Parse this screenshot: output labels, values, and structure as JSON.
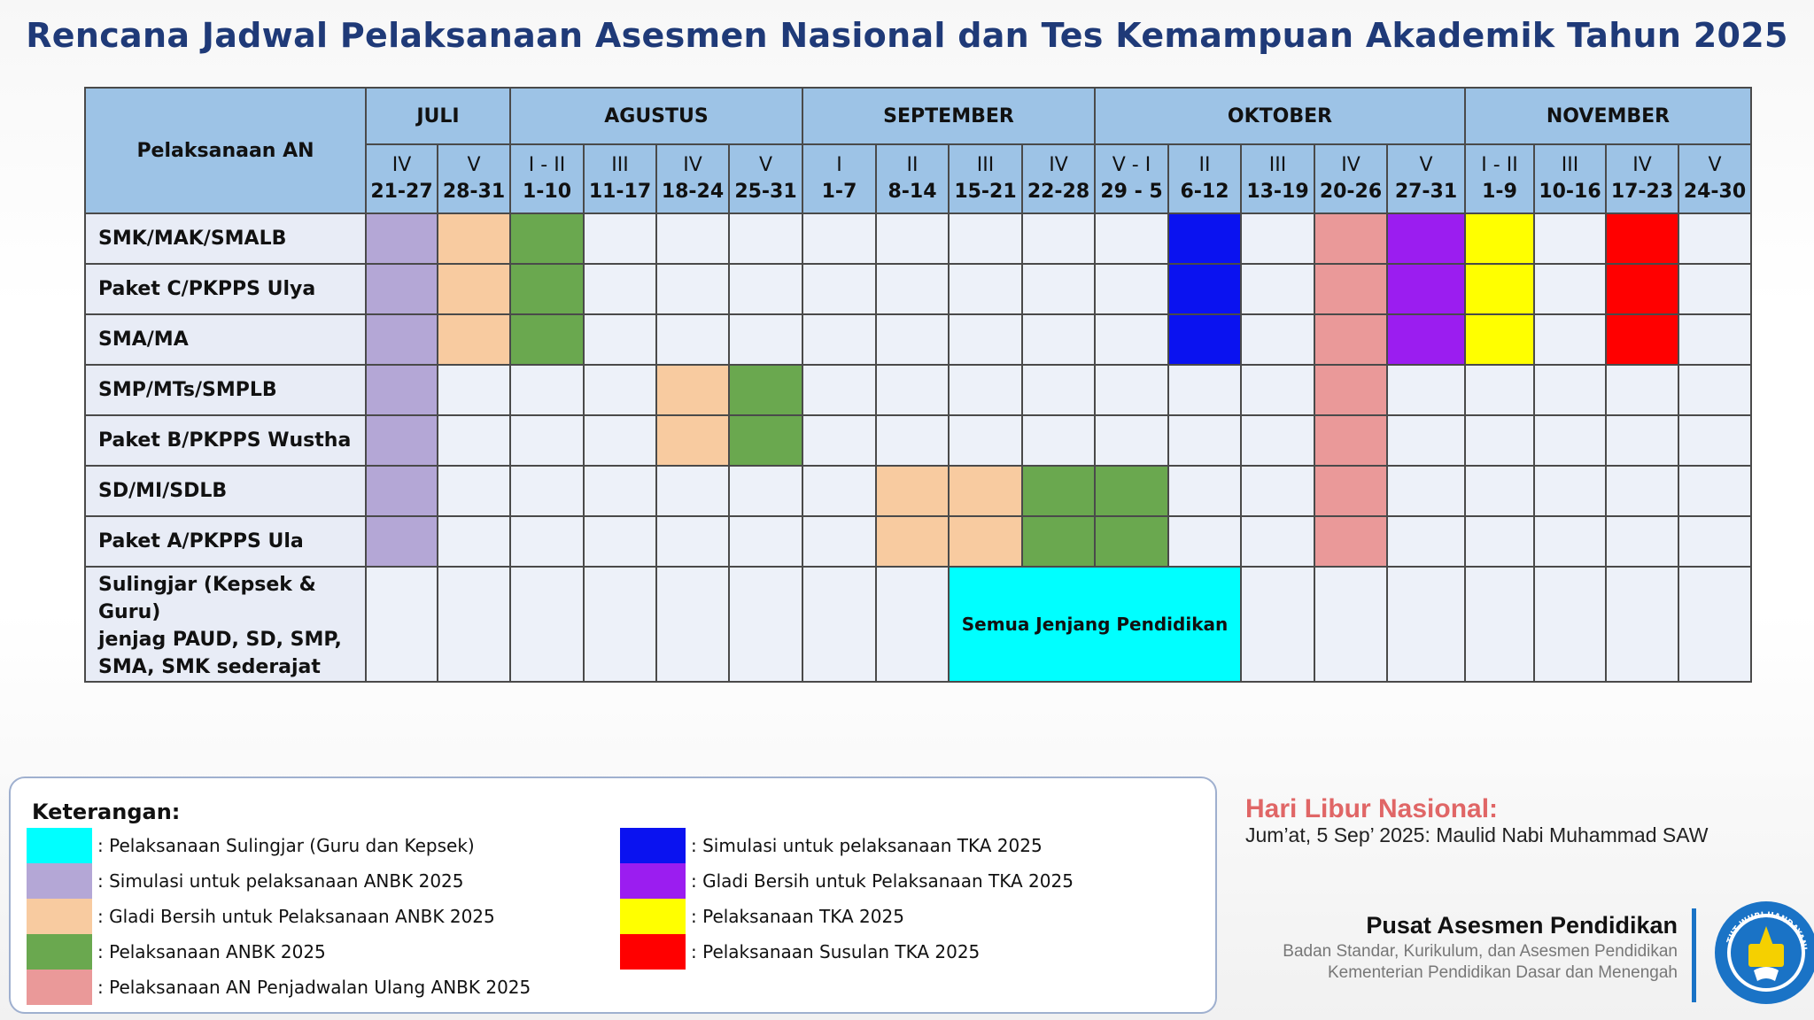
{
  "title": "Rencana Jadwal Pelaksanaan Asesmen Nasional dan Tes Kemampuan Akademik Tahun 2025",
  "table": {
    "corner": "Pelaksanaan AN",
    "months": [
      "JULI",
      "AGUSTUS",
      "SEPTEMBER",
      "OKTOBER",
      "NOVEMBER"
    ],
    "weeks": [
      {
        "rom": "IV",
        "range": "21-27"
      },
      {
        "rom": "V",
        "range": "28-31"
      },
      {
        "rom": "I - II",
        "range": "1-10"
      },
      {
        "rom": "III",
        "range": "11-17"
      },
      {
        "rom": "IV",
        "range": "18-24"
      },
      {
        "rom": "V",
        "range": "25-31"
      },
      {
        "rom": "I",
        "range": "1-7"
      },
      {
        "rom": "II",
        "range": "8-14"
      },
      {
        "rom": "III",
        "range": "15-21"
      },
      {
        "rom": "IV",
        "range": "22-28"
      },
      {
        "rom": "V - I",
        "range": "29 - 5"
      },
      {
        "rom": "II",
        "range": "6-12"
      },
      {
        "rom": "III",
        "range": "13-19"
      },
      {
        "rom": "IV",
        "range": "20-26"
      },
      {
        "rom": "V",
        "range": "27-31"
      },
      {
        "rom": "I - II",
        "range": "1-9"
      },
      {
        "rom": "III",
        "range": "10-16"
      },
      {
        "rom": "IV",
        "range": "17-23"
      },
      {
        "rom": "V",
        "range": "24-30"
      }
    ],
    "rows": [
      "SMK/MAK/SMALB",
      "Paket C/PKPPS Ulya",
      "SMA/MA",
      "SMP/MTs/SMPLB",
      "Paket B/PKPPS Wustha",
      "SD/MI/SDLB",
      "Paket A/PKPPS Ula"
    ],
    "sulingjar": {
      "line1": "Sulingjar (Kepsek & Guru)",
      "line2": "jenjag PAUD, SD, SMP,",
      "line3": "SMA, SMK  sederajat",
      "span_text": "Semua Jenjang Pendidikan"
    }
  },
  "legend": {
    "title": "Keterangan:",
    "items": [
      {
        "color": "#00ffff",
        "text": ": Pelaksanaan Sulingjar (Guru dan Kepsek)"
      },
      {
        "color": "#b4a7d6",
        "text": ": Simulasi untuk pelaksanaan ANBK 2025"
      },
      {
        "color": "#f8cba0",
        "text": ": Gladi Bersih untuk Pelaksanaan ANBK 2025"
      },
      {
        "color": "#6aa84f",
        "text": ": Pelaksanaan ANBK 2025"
      },
      {
        "color": "#ea9999",
        "text": ": Pelaksanaan AN Penjadwalan Ulang ANBK 2025"
      },
      {
        "color": "#0a12f0",
        "text": ": Simulasi untuk pelaksanaan TKA 2025"
      },
      {
        "color": "#9b1df0",
        "text": ": Gladi Bersih untuk Pelaksanaan TKA 2025"
      },
      {
        "color": "#ffff00",
        "text": ": Pelaksanaan TKA 2025"
      },
      {
        "color": "#ff0000",
        "text": ": Pelaksanaan Susulan TKA 2025"
      }
    ]
  },
  "holiday": {
    "title": "Hari Libur Nasional:",
    "text": "Jum’at, 5 Sep’ 2025: Maulid Nabi Muhammad SAW"
  },
  "org": {
    "name": "Pusat Asesmen Pendidikan",
    "line1": "Badan Standar, Kurikulum, dan Asesmen Pendidikan",
    "line2": "Kementerian Pendidikan Dasar dan Menengah",
    "logo_text": "TUT WURI HANDAYANI"
  }
}
